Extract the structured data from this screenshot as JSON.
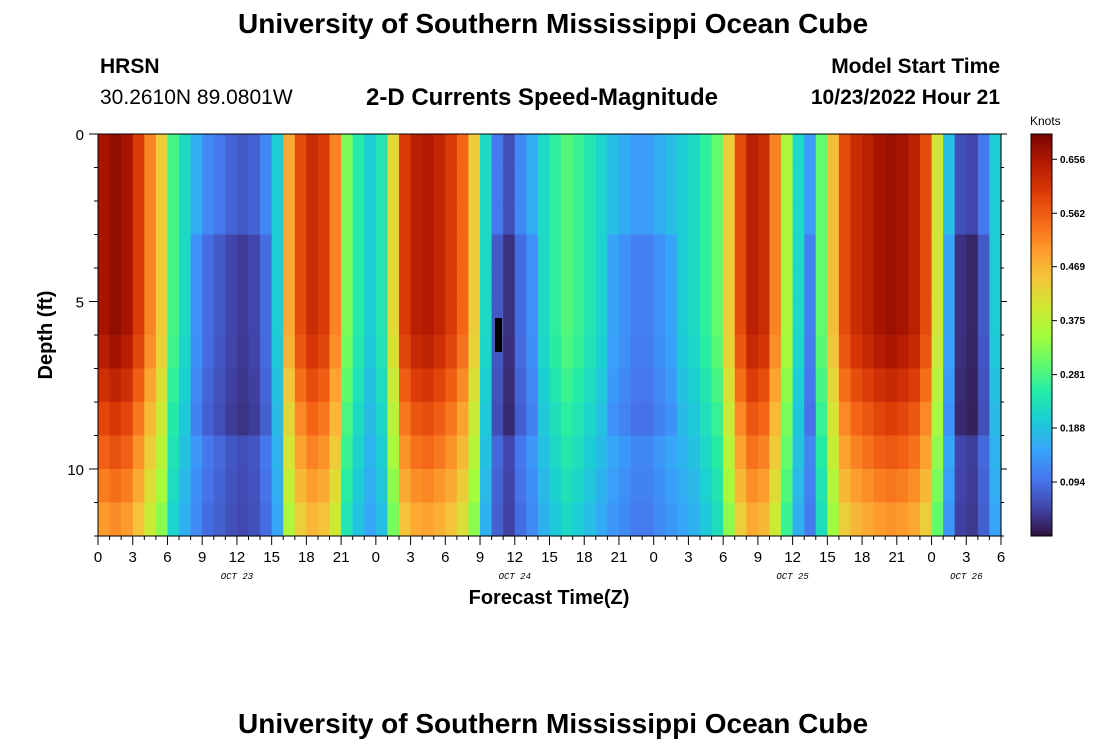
{
  "title": "University of Southern Mississippi Ocean Cube",
  "footer_title": "University of Southern Mississippi Ocean Cube",
  "station": {
    "name": "HRSN",
    "coords": "30.2610N  89.0801W"
  },
  "model_start": {
    "label": "Model Start Time",
    "value": "10/23/2022 Hour 21"
  },
  "chart_data": {
    "type": "heatmap",
    "title": "2-D Currents Speed-Magnitude",
    "xlabel": "Forecast Time(Z)",
    "ylabel": "Depth (ft)",
    "x_hours_range": [
      0,
      78
    ],
    "ylim": [
      0,
      12
    ],
    "y_ticks": [
      0,
      5,
      10
    ],
    "x_tick_labels": [
      "0",
      "3",
      "6",
      "9",
      "12",
      "15",
      "18",
      "21",
      "0",
      "3",
      "6",
      "9",
      "12",
      "15",
      "18",
      "21",
      "0",
      "3",
      "6",
      "9",
      "12",
      "15",
      "18",
      "21",
      "0",
      "3",
      "6"
    ],
    "day_labels": [
      {
        "hour": 12,
        "label": "OCT 23"
      },
      {
        "hour": 36,
        "label": "OCT 24"
      },
      {
        "hour": 60,
        "label": "OCT 25"
      },
      {
        "hour": 75,
        "label": "OCT 26"
      }
    ],
    "colorbar": {
      "unit": "Knots",
      "min": 0.0,
      "max": 0.7,
      "ticks": [
        "0.656",
        "0.562",
        "0.469",
        "0.375",
        "0.281",
        "0.188",
        "0.094"
      ]
    },
    "surface_speed_by_hour": [
      0.66,
      0.68,
      0.66,
      0.6,
      0.52,
      0.44,
      0.28,
      0.22,
      0.16,
      0.12,
      0.1,
      0.08,
      0.07,
      0.08,
      0.12,
      0.2,
      0.48,
      0.58,
      0.62,
      0.6,
      0.52,
      0.32,
      0.25,
      0.2,
      0.24,
      0.42,
      0.6,
      0.64,
      0.65,
      0.63,
      0.6,
      0.55,
      0.44,
      0.22,
      0.1,
      0.06,
      0.12,
      0.16,
      0.22,
      0.26,
      0.29,
      0.27,
      0.24,
      0.21,
      0.18,
      0.16,
      0.14,
      0.14,
      0.16,
      0.18,
      0.2,
      0.22,
      0.26,
      0.3,
      0.44,
      0.58,
      0.64,
      0.62,
      0.52,
      0.36,
      0.22,
      0.14,
      0.3,
      0.46,
      0.58,
      0.62,
      0.64,
      0.66,
      0.67,
      0.66,
      0.64,
      0.58,
      0.4,
      0.18,
      0.06,
      0.05,
      0.1,
      0.2,
      0.28
    ]
  }
}
